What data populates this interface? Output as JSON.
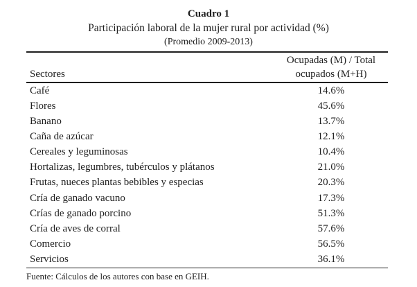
{
  "header": {
    "title": "Cuadro 1",
    "subtitle": "Participación laboral de la mujer rural por actividad (%)",
    "period": "(Promedio 2009-2013)"
  },
  "table": {
    "sector_header": "Sectores",
    "value_header_line1": "Ocupadas (M) / Total",
    "value_header_line2": "ocupados (M+H)",
    "rows": [
      {
        "sector": "Café",
        "value": "14.6%"
      },
      {
        "sector": "Flores",
        "value": "45.6%"
      },
      {
        "sector": "Banano",
        "value": "13.7%"
      },
      {
        "sector": "Caña de azúcar",
        "value": "12.1%"
      },
      {
        "sector": "Cereales y leguminosas",
        "value": "10.4%"
      },
      {
        "sector": "Hortalizas, legumbres, tubérculos y plátanos",
        "value": "21.0%"
      },
      {
        "sector": "Frutas, nueces plantas bebibles y especias",
        "value": "20.3%"
      },
      {
        "sector": "Cría de ganado vacuno",
        "value": "17.3%"
      },
      {
        "sector": "Crías de ganado porcino",
        "value": "51.3%"
      },
      {
        "sector": "Cría de aves de corral",
        "value": "57.6%"
      },
      {
        "sector": "Comercio",
        "value": "56.5%"
      },
      {
        "sector": "Servicios",
        "value": "36.1%"
      }
    ]
  },
  "footer": {
    "source": "Fuente: Cálculos de los autores con base en GEIH."
  },
  "colors": {
    "text": "#1e1e1e",
    "rule": "#1e1e1e",
    "background": "#ffffff"
  }
}
